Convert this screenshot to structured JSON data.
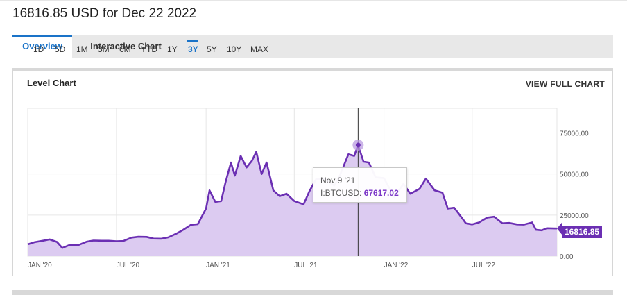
{
  "header": {
    "title": "16816.85 USD for Dec 22 2022"
  },
  "tabs": [
    {
      "label": "Overview"
    },
    {
      "label": "Interactive Chart"
    }
  ],
  "card": {
    "title": "Level Chart",
    "view_full": "VIEW FULL CHART"
  },
  "ranges": [
    {
      "label": "1D"
    },
    {
      "label": "5D"
    },
    {
      "label": "1M"
    },
    {
      "label": "3M"
    },
    {
      "label": "6M"
    },
    {
      "label": "YTD"
    },
    {
      "label": "1Y"
    },
    {
      "label": "3Y"
    },
    {
      "label": "5Y"
    },
    {
      "label": "10Y"
    },
    {
      "label": "MAX"
    }
  ],
  "active_range": "3Y",
  "tooltip": {
    "date": "Nov 9 '21",
    "label": "I:BTCUSD:",
    "value": "67617.02"
  },
  "price_badge": "16816.85",
  "colors": {
    "accent": "#1a73c8",
    "line": "#6b2fb3",
    "fill": "#dccbf1"
  },
  "chart_data": {
    "type": "area",
    "series_label": "I:BTCUSD",
    "x_ticks": [
      "JAN '20",
      "JUL '20",
      "JAN '21",
      "JUL '21",
      "JAN '22",
      "JUL '22"
    ],
    "y_ticks": [
      "0.00",
      "25000.00",
      "50000.00",
      "75000.00"
    ],
    "ylim": [
      0,
      90000
    ],
    "x": [
      "2020-01-01",
      "2020-01-15",
      "2020-02-01",
      "2020-02-15",
      "2020-03-01",
      "2020-03-12",
      "2020-03-25",
      "2020-04-15",
      "2020-05-01",
      "2020-05-15",
      "2020-06-01",
      "2020-06-15",
      "2020-07-01",
      "2020-07-15",
      "2020-08-01",
      "2020-08-15",
      "2020-09-01",
      "2020-09-15",
      "2020-10-01",
      "2020-10-15",
      "2020-11-01",
      "2020-11-15",
      "2020-12-01",
      "2020-12-15",
      "2021-01-01",
      "2021-01-08",
      "2021-01-20",
      "2021-02-01",
      "2021-02-10",
      "2021-02-21",
      "2021-03-01",
      "2021-03-13",
      "2021-03-25",
      "2021-04-05",
      "2021-04-14",
      "2021-04-25",
      "2021-05-05",
      "2021-05-19",
      "2021-06-01",
      "2021-06-15",
      "2021-07-01",
      "2021-07-20",
      "2021-08-01",
      "2021-08-15",
      "2021-09-01",
      "2021-09-21",
      "2021-10-01",
      "2021-10-20",
      "2021-11-01",
      "2021-11-09",
      "2021-11-20",
      "2021-12-01",
      "2021-12-15",
      "2022-01-01",
      "2022-01-22",
      "2022-02-10",
      "2022-02-24",
      "2022-03-15",
      "2022-03-28",
      "2022-04-15",
      "2022-05-01",
      "2022-05-12",
      "2022-05-25",
      "2022-06-12",
      "2022-06-18",
      "2022-07-01",
      "2022-07-15",
      "2022-08-01",
      "2022-08-15",
      "2022-09-01",
      "2022-09-15",
      "2022-10-01",
      "2022-10-15",
      "2022-11-01",
      "2022-11-09",
      "2022-11-21",
      "2022-12-01",
      "2022-12-22"
    ],
    "values": [
      7200,
      8500,
      9400,
      10200,
      8600,
      5000,
      6600,
      6900,
      8800,
      9500,
      9400,
      9400,
      9100,
      9200,
      11300,
      11800,
      11700,
      10700,
      10600,
      11400,
      13700,
      16000,
      19100,
      19500,
      29000,
      40000,
      33000,
      33500,
      45000,
      57000,
      49000,
      61000,
      54000,
      58000,
      63500,
      50000,
      57000,
      40000,
      36500,
      38000,
      33500,
      31500,
      39500,
      47000,
      47000,
      43000,
      48000,
      62000,
      61000,
      67600,
      57500,
      57000,
      48000,
      47500,
      36000,
      44000,
      38000,
      41000,
      47200,
      40000,
      38600,
      29000,
      29500,
      22500,
      20000,
      19300,
      20500,
      23500,
      24000,
      20000,
      20200,
      19300,
      19200,
      20500,
      16000,
      15700,
      17000,
      16816.85
    ]
  }
}
